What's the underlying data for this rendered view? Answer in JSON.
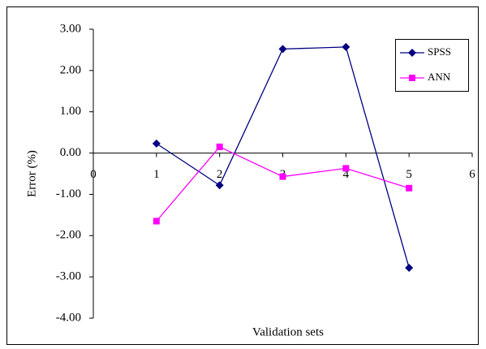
{
  "chart_data": {
    "type": "line",
    "x_label": "Validation sets",
    "y_label": "Error (%)",
    "x": [
      1,
      2,
      3,
      4,
      5
    ],
    "series": [
      {
        "name": "SPSS",
        "color": "#000080",
        "marker": "diamond",
        "values": [
          0.23,
          -0.78,
          2.52,
          2.57,
          -2.78
        ]
      },
      {
        "name": "ANN",
        "color": "#ff00ff",
        "marker": "square",
        "values": [
          -1.65,
          0.15,
          -0.57,
          -0.37,
          -0.85
        ]
      }
    ],
    "xlim": [
      0,
      6
    ],
    "xticks": [
      0,
      1,
      2,
      3,
      4,
      5,
      6
    ],
    "ylim": [
      -4,
      3
    ],
    "yticks": [
      {
        "value": -4,
        "label": "-4.00"
      },
      {
        "value": -3,
        "label": "-3.00"
      },
      {
        "value": -2,
        "label": "-2.00"
      },
      {
        "value": -1,
        "label": "-1.00"
      },
      {
        "value": 0,
        "label": "0.00"
      },
      {
        "value": 1,
        "label": "1.00"
      },
      {
        "value": 2,
        "label": "2.00"
      },
      {
        "value": 3,
        "label": "3.00"
      }
    ],
    "grid": false,
    "legend": "upper right"
  }
}
